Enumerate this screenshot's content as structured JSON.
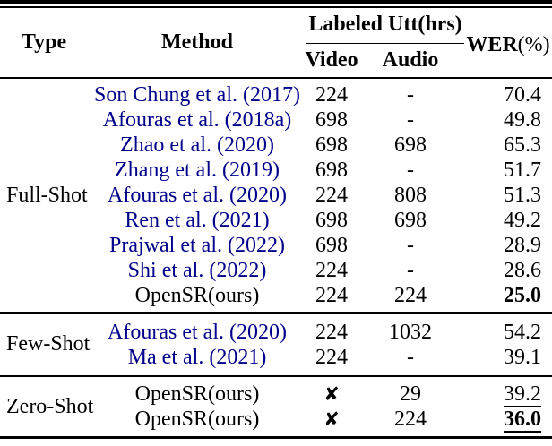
{
  "table": {
    "header": {
      "type": "Type",
      "method": "Method",
      "labeled_utt": "Labeled Utt(hrs)",
      "video": "Video",
      "audio": "Audio",
      "wer": "WER",
      "wer_unit": "(%)"
    },
    "colors": {
      "citation_blue": "#00008B",
      "text": "#000000",
      "rule": "#000000",
      "background": "#ffffff"
    },
    "sections": [
      {
        "type": "Full-Shot",
        "rows": [
          {
            "method": "Son Chung et al. (2017)",
            "cite": true,
            "video": "224",
            "video_cross": false,
            "audio": "-",
            "wer": "70.4",
            "wer_style": "normal"
          },
          {
            "method": "Afouras et al. (2018a)",
            "cite": true,
            "video": "698",
            "video_cross": false,
            "audio": "-",
            "wer": "49.8",
            "wer_style": "normal"
          },
          {
            "method": "Zhao et al. (2020)",
            "cite": true,
            "video": "698",
            "video_cross": false,
            "audio": "698",
            "wer": "65.3",
            "wer_style": "normal"
          },
          {
            "method": "Zhang et al. (2019)",
            "cite": true,
            "video": "698",
            "video_cross": false,
            "audio": "-",
            "wer": "51.7",
            "wer_style": "normal"
          },
          {
            "method": "Afouras et al. (2020)",
            "cite": true,
            "video": "224",
            "video_cross": false,
            "audio": "808",
            "wer": "51.3",
            "wer_style": "normal"
          },
          {
            "method": "Ren et al. (2021)",
            "cite": true,
            "video": "698",
            "video_cross": false,
            "audio": "698",
            "wer": "49.2",
            "wer_style": "normal"
          },
          {
            "method": "Prajwal et al. (2022)",
            "cite": true,
            "video": "698",
            "video_cross": false,
            "audio": "-",
            "wer": "28.9",
            "wer_style": "normal"
          },
          {
            "method": "Shi et al. (2022)",
            "cite": true,
            "video": "224",
            "video_cross": false,
            "audio": "-",
            "wer": "28.6",
            "wer_style": "normal"
          },
          {
            "method": "OpenSR(ours)",
            "cite": false,
            "video": "224",
            "video_cross": false,
            "audio": "224",
            "wer": "25.0",
            "wer_style": "bold"
          }
        ]
      },
      {
        "type": "Few-Shot",
        "rows": [
          {
            "method": "Afouras et al. (2020)",
            "cite": true,
            "video": "224",
            "video_cross": false,
            "audio": "1032",
            "wer": "54.2",
            "wer_style": "normal"
          },
          {
            "method": "Ma et al. (2021)",
            "cite": true,
            "video": "224",
            "video_cross": false,
            "audio": "-",
            "wer": "39.1",
            "wer_style": "normal"
          }
        ]
      },
      {
        "type": "Zero-Shot",
        "rows": [
          {
            "method": "OpenSR(ours)",
            "cite": false,
            "video": "✘",
            "video_cross": true,
            "audio": "29",
            "wer": "39.2",
            "wer_style": "underline"
          },
          {
            "method": "OpenSR(ours)",
            "cite": false,
            "video": "✘",
            "video_cross": true,
            "audio": "224",
            "wer": "36.0",
            "wer_style": "bold-underline"
          }
        ]
      }
    ]
  }
}
